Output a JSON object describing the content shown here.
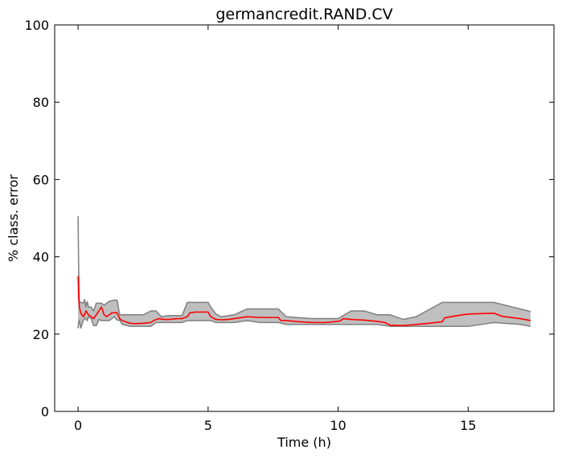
{
  "chart_data": {
    "type": "area",
    "title": "germancredit.RAND.CV",
    "xlabel": "Time (h)",
    "ylabel": "% class. error",
    "xlim": [
      -0.9,
      18.3
    ],
    "ylim": [
      0,
      100
    ],
    "xticks": [
      0,
      5,
      10,
      15
    ],
    "yticks": [
      0,
      20,
      40,
      60,
      80,
      100
    ],
    "grid": false,
    "colors": {
      "mean": "#ff0000",
      "band_fill": "#bfbfbf",
      "band_edge": "#7f7f7f",
      "axes": "#000000"
    },
    "series": [
      {
        "name": "",
        "kind": "mean",
        "x": [
          0,
          0.02,
          0.05,
          0.1,
          0.15,
          0.2,
          0.25,
          0.3,
          0.35,
          0.4,
          0.5,
          0.6,
          0.7,
          0.8,
          0.9,
          1.0,
          1.1,
          1.2,
          1.3,
          1.5,
          1.6,
          1.7,
          2.0,
          2.2,
          2.5,
          2.8,
          2.9,
          3.1,
          3.3,
          3.5,
          3.8,
          4.0,
          4.2,
          4.3,
          4.5,
          5.0,
          5.1,
          5.3,
          5.5,
          5.8,
          6.0,
          6.5,
          7.0,
          7.7,
          7.8,
          8.0,
          8.5,
          9.0,
          9.5,
          10.0,
          10.1,
          10.2,
          10.5,
          11.0,
          11.5,
          11.8,
          12.0,
          12.5,
          13.0,
          13.5,
          14.0,
          14.1,
          14.5,
          15.0,
          15.5,
          16.0,
          16.3,
          17.0,
          17.4
        ],
        "y": [
          35,
          30,
          27,
          25.5,
          25,
          24.5,
          25,
          26,
          25.5,
          25,
          24.5,
          24,
          25,
          26,
          27,
          25,
          24.5,
          25,
          25.5,
          25.5,
          24,
          23.5,
          22.8,
          22.7,
          22.8,
          23,
          23.5,
          24,
          23.8,
          23.8,
          24,
          24,
          24.5,
          25.5,
          25.7,
          25.7,
          24.5,
          23.8,
          23.7,
          23.8,
          24,
          24.5,
          24.3,
          24.3,
          23.5,
          23.5,
          23.2,
          23,
          23,
          23.3,
          23.5,
          24,
          23.8,
          23.6,
          23.3,
          23,
          22.3,
          22.2,
          22.5,
          22.8,
          23.2,
          24.2,
          24.7,
          25.2,
          25.3,
          25.4,
          24.6,
          24,
          23.5
        ]
      },
      {
        "name": "",
        "kind": "band",
        "x": [
          0,
          0.02,
          0.05,
          0.1,
          0.2,
          0.25,
          0.3,
          0.35,
          0.4,
          0.5,
          0.6,
          0.7,
          0.8,
          0.9,
          1.0,
          1.2,
          1.4,
          1.5,
          1.6,
          1.7,
          2.0,
          2.5,
          2.8,
          3.0,
          3.2,
          3.5,
          4.0,
          4.2,
          5.0,
          5.1,
          5.3,
          5.5,
          6.0,
          6.5,
          7.0,
          7.7,
          8.0,
          9.0,
          9.5,
          10.0,
          10.5,
          11.0,
          11.5,
          12.0,
          12.5,
          13.0,
          14.0,
          15.0,
          16.0,
          17.0,
          17.4
        ],
        "upper": [
          50.5,
          38,
          28.5,
          28.2,
          28,
          29,
          27,
          28.5,
          27,
          27,
          26,
          28,
          28,
          28,
          27.5,
          28.5,
          28.8,
          28.8,
          25,
          25,
          25,
          25,
          26,
          26,
          24.5,
          24.8,
          24.8,
          28.2,
          28.2,
          27,
          25.2,
          24.5,
          25,
          26.5,
          26.5,
          26.5,
          24.5,
          24,
          24,
          24,
          26,
          26,
          25,
          25,
          23.8,
          24.5,
          28.2,
          28.2,
          28.2,
          26.5,
          25.8
        ],
        "lower": [
          21.5,
          23,
          23.5,
          21.5,
          23.5,
          24,
          24,
          23.5,
          24.5,
          24,
          22.2,
          22.2,
          23.8,
          23.5,
          23.5,
          23.5,
          24.5,
          23.6,
          23.6,
          22.5,
          22,
          22,
          22,
          23,
          23,
          23,
          23,
          23.5,
          23.5,
          23.5,
          23,
          23,
          23,
          23.5,
          23,
          23,
          22.5,
          22.5,
          22.5,
          22.5,
          22.5,
          22.5,
          22.5,
          22,
          22,
          22,
          22,
          22,
          23,
          22.5,
          22
        ]
      }
    ]
  }
}
